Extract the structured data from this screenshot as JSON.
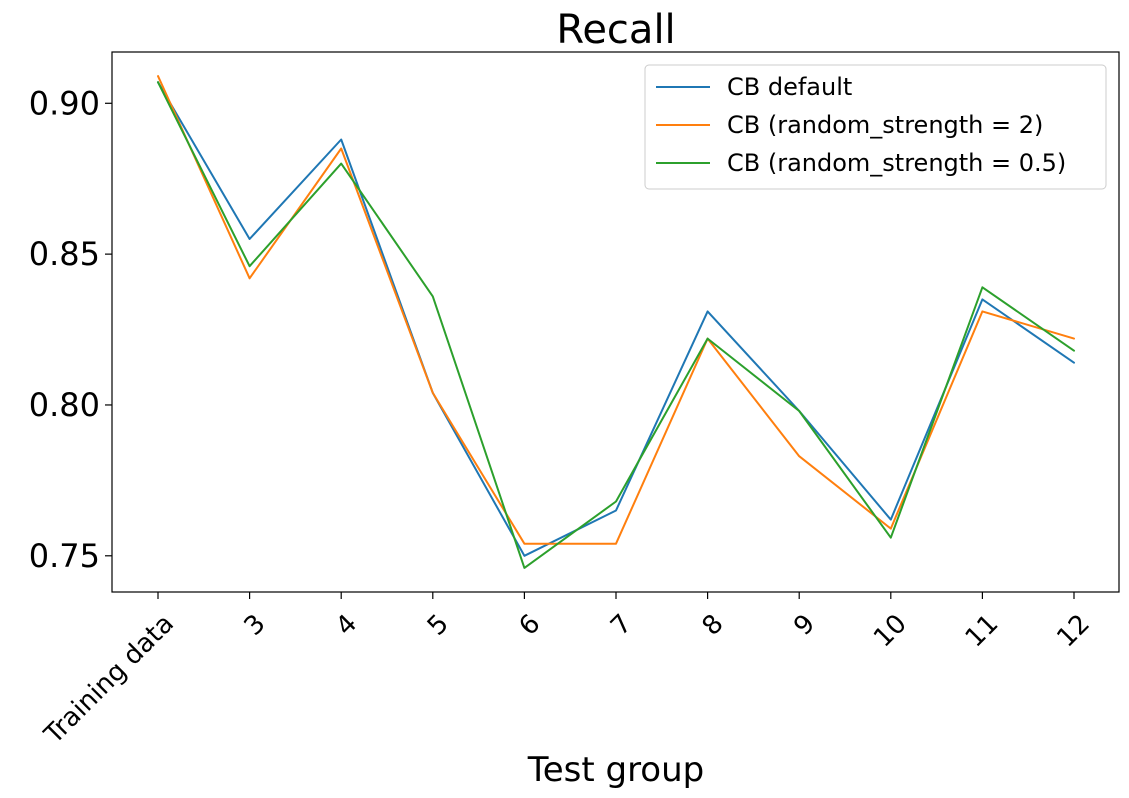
{
  "chart_data": {
    "type": "line",
    "title": "Recall",
    "xlabel": "Test group",
    "ylabel": "",
    "categories": [
      "Training data",
      "3",
      "4",
      "5",
      "6",
      "7",
      "8",
      "9",
      "10",
      "11",
      "12"
    ],
    "ylim": [
      0.738,
      0.917
    ],
    "yticks": [
      0.75,
      0.8,
      0.85,
      0.9
    ],
    "ytick_labels": [
      "0.75",
      "0.80",
      "0.85",
      "0.90"
    ],
    "grid": false,
    "legend_position": "top-right",
    "series": [
      {
        "name": "CB default",
        "color": "#1f77b4",
        "values": [
          0.907,
          0.855,
          0.888,
          0.804,
          0.75,
          0.765,
          0.831,
          0.798,
          0.762,
          0.835,
          0.814
        ]
      },
      {
        "name": "CB (random_strength = 2)",
        "color": "#ff7f0e",
        "values": [
          0.909,
          0.842,
          0.885,
          0.804,
          0.754,
          0.754,
          0.822,
          0.783,
          0.759,
          0.831,
          0.822
        ]
      },
      {
        "name": "CB (random_strength = 0.5)",
        "color": "#2ca02c",
        "values": [
          0.907,
          0.846,
          0.88,
          0.836,
          0.746,
          0.768,
          0.822,
          0.798,
          0.756,
          0.839,
          0.818
        ]
      }
    ]
  }
}
